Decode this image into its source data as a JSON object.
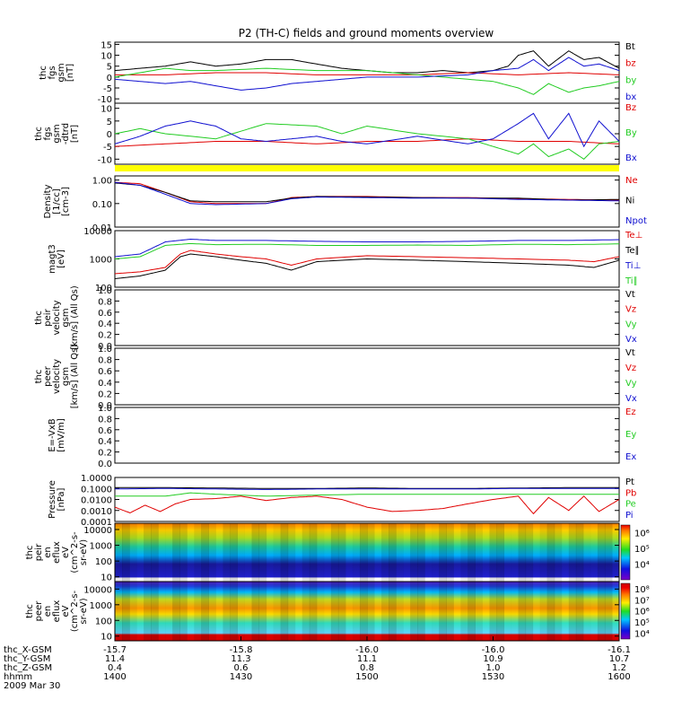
{
  "title": "P2 (TH-C) fields and ground moments overview",
  "colors": {
    "black": "#000000",
    "red": "#e00000",
    "green": "#22cc22",
    "blue": "#1010d0",
    "yellow": "#ffff00"
  },
  "chart_data": [
    {
      "type": "line",
      "name": "fgs_gsm",
      "ylabel": [
        "thc",
        "fgs",
        "gsm",
        "[nT]"
      ],
      "yticks": [
        "15",
        "10",
        "5",
        "0",
        "-5",
        "-10"
      ],
      "ylim": [
        -12,
        16
      ],
      "legend": [
        {
          "label": "Bt",
          "color": "#000000"
        },
        {
          "label": "bz",
          "color": "#e00000"
        },
        {
          "label": "by",
          "color": "#22cc22"
        },
        {
          "label": "bx",
          "color": "#1010d0"
        }
      ],
      "series": [
        {
          "name": "Bt",
          "color": "#000000",
          "x": [
            0,
            0.05,
            0.1,
            0.15,
            0.2,
            0.25,
            0.3,
            0.35,
            0.4,
            0.45,
            0.5,
            0.55,
            0.6,
            0.65,
            0.7,
            0.75,
            0.78,
            0.8,
            0.83,
            0.86,
            0.9,
            0.93,
            0.96,
            1.0
          ],
          "y": [
            3,
            4,
            5,
            7,
            5,
            6,
            8,
            8,
            6,
            4,
            3,
            2,
            2,
            3,
            2,
            3,
            5,
            10,
            12,
            5,
            12,
            8,
            9,
            4
          ]
        },
        {
          "name": "bz",
          "color": "#e00000",
          "x": [
            0,
            0.1,
            0.2,
            0.3,
            0.4,
            0.5,
            0.6,
            0.7,
            0.8,
            0.9,
            1.0
          ],
          "y": [
            1,
            1,
            2,
            2,
            1,
            1,
            1,
            2,
            1,
            2,
            1
          ]
        },
        {
          "name": "by",
          "color": "#22cc22",
          "x": [
            0,
            0.05,
            0.1,
            0.15,
            0.2,
            0.3,
            0.4,
            0.5,
            0.6,
            0.7,
            0.75,
            0.8,
            0.83,
            0.86,
            0.9,
            0.93,
            0.96,
            1.0
          ],
          "y": [
            0,
            2,
            4,
            3,
            3,
            4,
            3,
            3,
            1,
            -1,
            -2,
            -5,
            -8,
            -3,
            -7,
            -5,
            -4,
            -2
          ]
        },
        {
          "name": "bx",
          "color": "#1010d0",
          "x": [
            0,
            0.05,
            0.1,
            0.15,
            0.2,
            0.25,
            0.3,
            0.35,
            0.4,
            0.45,
            0.5,
            0.6,
            0.7,
            0.75,
            0.8,
            0.83,
            0.86,
            0.9,
            0.93,
            0.96,
            1.0
          ],
          "y": [
            -1,
            -2,
            -3,
            -2,
            -4,
            -6,
            -5,
            -3,
            -2,
            -1,
            0,
            0,
            1,
            3,
            4,
            8,
            3,
            9,
            5,
            6,
            3
          ]
        }
      ]
    },
    {
      "type": "line",
      "name": "fgs_gsm_detrend",
      "ylabel": [
        "thc",
        "fgs",
        "gsm",
        "-dtrd",
        "[nT]"
      ],
      "yticks": [
        "10",
        "5",
        "0",
        "-5",
        "-10"
      ],
      "ylim": [
        -12,
        12
      ],
      "legend": [
        {
          "label": "Bz",
          "color": "#e00000"
        },
        {
          "label": "By",
          "color": "#22cc22"
        },
        {
          "label": "Bx",
          "color": "#1010d0"
        }
      ],
      "series": [
        {
          "name": "Bz",
          "color": "#e00000",
          "x": [
            0,
            0.1,
            0.2,
            0.3,
            0.4,
            0.5,
            0.6,
            0.7,
            0.8,
            0.9,
            1.0
          ],
          "y": [
            -5,
            -4,
            -3,
            -3,
            -4,
            -3,
            -3,
            -2,
            -3,
            -3,
            -4
          ]
        },
        {
          "name": "By",
          "color": "#22cc22",
          "x": [
            0,
            0.05,
            0.1,
            0.2,
            0.3,
            0.4,
            0.45,
            0.5,
            0.6,
            0.7,
            0.75,
            0.8,
            0.83,
            0.86,
            0.9,
            0.93,
            0.96,
            1.0
          ],
          "y": [
            0,
            2,
            0,
            -2,
            4,
            3,
            0,
            3,
            0,
            -2,
            -5,
            -8,
            -4,
            -9,
            -6,
            -10,
            -4,
            -3
          ]
        },
        {
          "name": "Bx",
          "color": "#1010d0",
          "x": [
            0,
            0.05,
            0.1,
            0.15,
            0.2,
            0.25,
            0.3,
            0.35,
            0.4,
            0.45,
            0.5,
            0.6,
            0.7,
            0.75,
            0.8,
            0.83,
            0.86,
            0.9,
            0.93,
            0.96,
            1.0
          ],
          "y": [
            -4,
            -1,
            3,
            5,
            3,
            -2,
            -3,
            -2,
            -1,
            -3,
            -4,
            -1,
            -4,
            -2,
            4,
            8,
            -2,
            8,
            -5,
            5,
            -3
          ]
        }
      ]
    },
    {
      "type": "line",
      "name": "density",
      "ylabel": [
        "Density",
        "[1/cc]",
        "[cm-3]"
      ],
      "yticks": [
        "1.00",
        "0.10",
        "0.01"
      ],
      "yscale": "log",
      "ylim": [
        0.01,
        1.5
      ],
      "legend": [
        {
          "label": "Ne",
          "color": "#e00000"
        },
        {
          "label": "Ni",
          "color": "#000000"
        },
        {
          "label": "Npot",
          "color": "#1010d0"
        }
      ],
      "series": [
        {
          "name": "Ne",
          "color": "#e00000",
          "x": [
            0,
            0.05,
            0.1,
            0.15,
            0.2,
            0.3,
            0.35,
            0.4,
            0.5,
            0.6,
            0.7,
            0.8,
            0.9,
            1.0
          ],
          "y": [
            0.8,
            0.7,
            0.3,
            0.12,
            0.1,
            0.1,
            0.18,
            0.2,
            0.2,
            0.18,
            0.18,
            0.16,
            0.15,
            0.14
          ]
        },
        {
          "name": "Ni",
          "color": "#000000",
          "x": [
            0,
            0.05,
            0.1,
            0.15,
            0.2,
            0.3,
            0.35,
            0.4,
            0.5,
            0.6,
            0.7,
            0.8,
            0.9,
            1.0
          ],
          "y": [
            0.75,
            0.6,
            0.3,
            0.13,
            0.12,
            0.12,
            0.17,
            0.2,
            0.19,
            0.18,
            0.17,
            0.17,
            0.14,
            0.15
          ]
        },
        {
          "name": "Npot",
          "color": "#1010d0",
          "x": [
            0,
            0.05,
            0.1,
            0.15,
            0.2,
            0.3,
            0.35,
            0.4,
            0.5,
            0.6,
            0.7,
            0.8,
            0.9,
            1.0
          ],
          "y": [
            0.8,
            0.6,
            0.25,
            0.1,
            0.09,
            0.1,
            0.16,
            0.19,
            0.18,
            0.17,
            0.17,
            0.15,
            0.14,
            0.13
          ]
        }
      ]
    },
    {
      "type": "line",
      "name": "temperature",
      "ylabel": [
        "magt3",
        "[eV]"
      ],
      "yticks": [
        "10000",
        "1000",
        "100"
      ],
      "yscale": "log",
      "ylim": [
        100,
        10000
      ],
      "legend": [
        {
          "label": "Te⊥",
          "color": "#e00000"
        },
        {
          "label": "Te∥",
          "color": "#000000"
        },
        {
          "label": "Ti⊥",
          "color": "#1010d0"
        },
        {
          "label": "Ti∥",
          "color": "#22cc22"
        }
      ],
      "series": [
        {
          "name": "Ti⊥",
          "color": "#1010d0",
          "x": [
            0,
            0.05,
            0.1,
            0.15,
            0.2,
            0.3,
            0.4,
            0.5,
            0.6,
            0.7,
            0.8,
            0.9,
            1.0
          ],
          "y": [
            1200,
            1500,
            4000,
            5000,
            4500,
            4500,
            4200,
            4000,
            4000,
            4200,
            4500,
            4500,
            4800
          ]
        },
        {
          "name": "Ti∥",
          "color": "#22cc22",
          "x": [
            0,
            0.05,
            0.1,
            0.15,
            0.2,
            0.3,
            0.4,
            0.5,
            0.6,
            0.7,
            0.8,
            0.9,
            1.0
          ],
          "y": [
            1000,
            1200,
            3000,
            3500,
            3200,
            3300,
            3000,
            3000,
            3100,
            3000,
            3300,
            3200,
            3400
          ]
        },
        {
          "name": "Te⊥",
          "color": "#e00000",
          "x": [
            0,
            0.05,
            0.1,
            0.13,
            0.15,
            0.2,
            0.25,
            0.3,
            0.35,
            0.4,
            0.5,
            0.6,
            0.7,
            0.8,
            0.9,
            0.95,
            1.0
          ],
          "y": [
            300,
            350,
            500,
            1500,
            2000,
            1500,
            1200,
            1000,
            600,
            1000,
            1300,
            1200,
            1100,
            1000,
            900,
            800,
            1200
          ]
        },
        {
          "name": "Te∥",
          "color": "#000000",
          "x": [
            0,
            0.05,
            0.1,
            0.13,
            0.15,
            0.2,
            0.25,
            0.3,
            0.35,
            0.4,
            0.5,
            0.6,
            0.7,
            0.8,
            0.9,
            0.95,
            1.0
          ],
          "y": [
            200,
            250,
            400,
            1200,
            1500,
            1200,
            900,
            700,
            400,
            800,
            1000,
            900,
            800,
            700,
            600,
            500,
            900
          ]
        }
      ]
    },
    {
      "type": "line",
      "name": "peir_velocity",
      "ylabel": [
        "thc",
        "peir",
        "velocity",
        "gsm",
        "[km/s] (All Qs)"
      ],
      "yticks": [
        "1.0",
        "0.8",
        "0.6",
        "0.4",
        "0.2",
        "0.0"
      ],
      "ylim": [
        0,
        1
      ],
      "legend": [
        {
          "label": "Vt",
          "color": "#000000"
        },
        {
          "label": "Vz",
          "color": "#e00000"
        },
        {
          "label": "Vy",
          "color": "#22cc22"
        },
        {
          "label": "Vx",
          "color": "#1010d0"
        }
      ],
      "series": []
    },
    {
      "type": "line",
      "name": "peer_velocity",
      "ylabel": [
        "thc",
        "peer",
        "velocity",
        "gsm",
        "[km/s] (All Qs)"
      ],
      "yticks": [
        "1.0",
        "0.8",
        "0.6",
        "0.4",
        "0.2",
        "0.0"
      ],
      "ylim": [
        0,
        1
      ],
      "legend": [
        {
          "label": "Vt",
          "color": "#000000"
        },
        {
          "label": "Vz",
          "color": "#e00000"
        },
        {
          "label": "Vy",
          "color": "#22cc22"
        },
        {
          "label": "Vx",
          "color": "#1010d0"
        }
      ],
      "series": []
    },
    {
      "type": "line",
      "name": "efield",
      "ylabel": [
        "E=-VxB",
        "[mV/m]"
      ],
      "yticks": [
        "1.0",
        "0.8",
        "0.6",
        "0.4",
        "0.2",
        "0.0"
      ],
      "ylim": [
        0,
        1
      ],
      "legend": [
        {
          "label": "Ez",
          "color": "#e00000"
        },
        {
          "label": "Ey",
          "color": "#22cc22"
        },
        {
          "label": "Ex",
          "color": "#1010d0"
        }
      ],
      "series": []
    },
    {
      "type": "line",
      "name": "pressure",
      "ylabel": [
        "Pressure",
        "[nPa]"
      ],
      "yticks": [
        "1.0000",
        "0.1000",
        "0.0100",
        "0.0010",
        "0.0001"
      ],
      "yscale": "log",
      "ylim": [
        0.0001,
        1
      ],
      "legend": [
        {
          "label": "Pt",
          "color": "#000000"
        },
        {
          "label": "Pb",
          "color": "#e00000"
        },
        {
          "label": "Pe",
          "color": "#22cc22"
        },
        {
          "label": "Pi",
          "color": "#1010d0"
        }
      ],
      "series": [
        {
          "name": "Pt",
          "color": "#000000",
          "x": [
            0,
            0.1,
            0.2,
            0.3,
            0.4,
            0.5,
            0.6,
            0.7,
            0.8,
            0.9,
            1.0
          ],
          "y": [
            0.12,
            0.12,
            0.11,
            0.1,
            0.1,
            0.11,
            0.1,
            0.1,
            0.11,
            0.12,
            0.12
          ]
        },
        {
          "name": "Pi",
          "color": "#1010d0",
          "x": [
            0,
            0.1,
            0.2,
            0.3,
            0.4,
            0.5,
            0.6,
            0.7,
            0.8,
            0.9,
            1.0
          ],
          "y": [
            0.09,
            0.1,
            0.09,
            0.08,
            0.09,
            0.09,
            0.09,
            0.09,
            0.1,
            0.1,
            0.1
          ]
        },
        {
          "name": "Pe",
          "color": "#22cc22",
          "x": [
            0,
            0.1,
            0.15,
            0.2,
            0.3,
            0.4,
            0.5,
            0.6,
            0.7,
            0.8,
            0.9,
            1.0
          ],
          "y": [
            0.02,
            0.02,
            0.04,
            0.03,
            0.02,
            0.025,
            0.03,
            0.03,
            0.03,
            0.03,
            0.03,
            0.03
          ]
        },
        {
          "name": "Pb",
          "color": "#e00000",
          "x": [
            0,
            0.03,
            0.06,
            0.09,
            0.12,
            0.15,
            0.2,
            0.25,
            0.3,
            0.35,
            0.4,
            0.45,
            0.5,
            0.55,
            0.6,
            0.65,
            0.7,
            0.75,
            0.8,
            0.83,
            0.86,
            0.9,
            0.93,
            0.96,
            1.0
          ],
          "y": [
            0.002,
            0.0006,
            0.003,
            0.0008,
            0.004,
            0.01,
            0.012,
            0.02,
            0.008,
            0.015,
            0.02,
            0.01,
            0.002,
            0.0008,
            0.001,
            0.0015,
            0.004,
            0.01,
            0.02,
            0.0005,
            0.015,
            0.001,
            0.02,
            0.0008,
            0.01
          ]
        }
      ]
    },
    {
      "type": "heatmap",
      "name": "peir_eflux",
      "ylabel": [
        "thc",
        "peir",
        "en",
        "eflux",
        "eV",
        "(cm^2-s-",
        "sr-eV)"
      ],
      "yticks": [
        "10000",
        "1000",
        "100",
        "10"
      ],
      "yscale": "log",
      "ylim": [
        5,
        25000
      ],
      "colorbar": {
        "ticks": [
          "10⁶",
          "10⁵",
          "10⁴"
        ],
        "range": [
          1000,
          3000000
        ],
        "scale": "log"
      }
    },
    {
      "type": "heatmap",
      "name": "peer_eflux",
      "ylabel": [
        "thc",
        "peer",
        "en",
        "eflux",
        "eV",
        "(cm^2-s-",
        "sr-eV)"
      ],
      "yticks": [
        "10000",
        "1000",
        "100",
        "10"
      ],
      "yscale": "log",
      "ylim": [
        5,
        30000
      ],
      "colorbar": {
        "ticks": [
          "10⁸",
          "10⁷",
          "10⁶",
          "10⁵",
          "10⁴"
        ],
        "range": [
          3000,
          300000000
        ],
        "scale": "log"
      }
    }
  ],
  "x_axis": {
    "rows": [
      {
        "label": "thc_X-GSM",
        "values": [
          "-15.7",
          "-15.8",
          "-16.0",
          "-16.0",
          "-16.1"
        ]
      },
      {
        "label": "thc_Y-GSM",
        "values": [
          "11.4",
          "11.3",
          "11.1",
          "10.9",
          "10.7"
        ]
      },
      {
        "label": "thc_Z-GSM",
        "values": [
          "0.4",
          "0.6",
          "0.8",
          "1.0",
          "1.2"
        ]
      },
      {
        "label": "hhmm",
        "values": [
          "1400",
          "1430",
          "1500",
          "1530",
          "1600"
        ]
      }
    ],
    "date": "2009 Mar 30"
  }
}
